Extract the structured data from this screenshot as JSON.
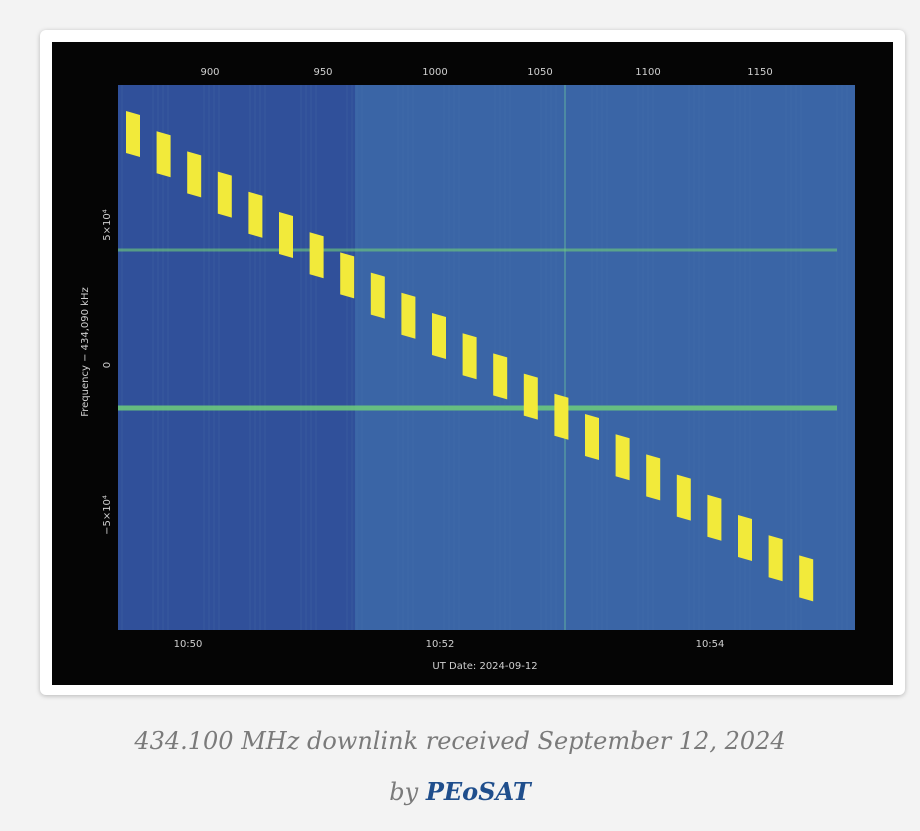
{
  "figure": {
    "top_axis_ticks": [
      "900",
      "950",
      "1000",
      "1050",
      "1100",
      "1150"
    ],
    "left_axis_ticks": [
      "5×10⁴",
      "0",
      "−5×10⁴"
    ],
    "left_axis_label": "Frequency − 434,090 kHz",
    "bottom_axis_ticks": [
      "10:50",
      "10:52",
      "10:54"
    ],
    "bottom_axis_label": "UT Date: 2024-09-12"
  },
  "caption": {
    "line1": "434.100 MHz downlink received September 12, 2024",
    "by": "by",
    "link": "PEoSAT"
  }
}
